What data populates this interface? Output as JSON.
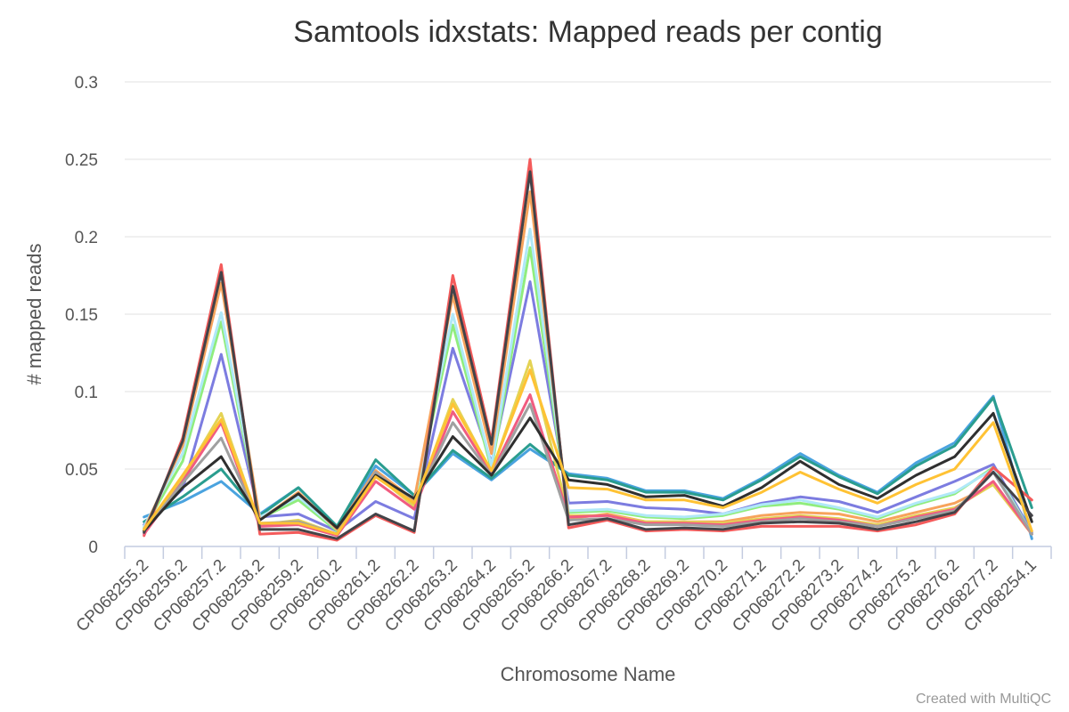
{
  "chart_data": {
    "type": "line",
    "title": "Samtools idxstats: Mapped reads per contig",
    "xlabel": "Chromosome Name",
    "ylabel": "# mapped reads",
    "ylim": [
      0,
      0.3
    ],
    "yticks": [
      "0",
      "0.05",
      "0.1",
      "0.15",
      "0.2",
      "0.25",
      "0.3"
    ],
    "grid": true,
    "legend": "none",
    "credit": "Created with MultiQC",
    "categories": [
      "CP068255.2",
      "CP068256.2",
      "CP068257.2",
      "CP068258.2",
      "CP068259.2",
      "CP068260.2",
      "CP068261.2",
      "CP068262.2",
      "CP068263.2",
      "CP068264.2",
      "CP068265.2",
      "CP068266.2",
      "CP068267.2",
      "CP068268.2",
      "CP068269.2",
      "CP068270.2",
      "CP068271.2",
      "CP068272.2",
      "CP068273.2",
      "CP068274.2",
      "CP068275.2",
      "CP068276.2",
      "CP068277.2",
      "CP068254.1"
    ],
    "series": [
      {
        "color": "#4aa3df",
        "values": [
          0.019,
          0.029,
          0.042,
          0.021,
          0.038,
          0.013,
          0.052,
          0.033,
          0.06,
          0.043,
          0.063,
          0.047,
          0.044,
          0.036,
          0.036,
          0.031,
          0.044,
          0.06,
          0.046,
          0.035,
          0.054,
          0.067,
          0.097,
          0.005
        ]
      },
      {
        "color": "#2a9d8f",
        "values": [
          0.016,
          0.032,
          0.05,
          0.02,
          0.038,
          0.013,
          0.056,
          0.033,
          0.062,
          0.044,
          0.066,
          0.046,
          0.043,
          0.035,
          0.035,
          0.03,
          0.043,
          0.058,
          0.045,
          0.034,
          0.052,
          0.065,
          0.096,
          0.025
        ]
      },
      {
        "color": "#7c7ce0",
        "values": [
          0.014,
          0.037,
          0.124,
          0.019,
          0.021,
          0.01,
          0.029,
          0.018,
          0.128,
          0.054,
          0.171,
          0.028,
          0.029,
          0.025,
          0.024,
          0.021,
          0.028,
          0.032,
          0.029,
          0.022,
          0.032,
          0.042,
          0.053,
          0.009
        ]
      },
      {
        "color": "#90ed7d",
        "values": [
          0.012,
          0.055,
          0.145,
          0.018,
          0.03,
          0.01,
          0.046,
          0.028,
          0.143,
          0.05,
          0.193,
          0.022,
          0.023,
          0.019,
          0.018,
          0.02,
          0.026,
          0.028,
          0.024,
          0.018,
          0.027,
          0.034,
          0.051,
          0.008
        ]
      },
      {
        "color": "#b0e8f8",
        "values": [
          0.013,
          0.06,
          0.151,
          0.019,
          0.032,
          0.011,
          0.048,
          0.029,
          0.15,
          0.052,
          0.205,
          0.023,
          0.024,
          0.02,
          0.019,
          0.021,
          0.027,
          0.03,
          0.025,
          0.019,
          0.028,
          0.035,
          0.05,
          0.008
        ]
      },
      {
        "color": "#f7a35c",
        "values": [
          0.011,
          0.065,
          0.17,
          0.017,
          0.035,
          0.011,
          0.049,
          0.03,
          0.162,
          0.06,
          0.229,
          0.018,
          0.021,
          0.016,
          0.016,
          0.016,
          0.02,
          0.022,
          0.021,
          0.016,
          0.022,
          0.028,
          0.04,
          0.008
        ]
      },
      {
        "color": "#e4d354",
        "values": [
          0.01,
          0.044,
          0.086,
          0.014,
          0.017,
          0.008,
          0.046,
          0.026,
          0.095,
          0.048,
          0.12,
          0.02,
          0.02,
          0.016,
          0.016,
          0.015,
          0.018,
          0.02,
          0.018,
          0.014,
          0.02,
          0.025,
          0.04,
          0.008
        ]
      },
      {
        "color": "#f45b5b",
        "values": [
          0.007,
          0.07,
          0.182,
          0.008,
          0.009,
          0.004,
          0.02,
          0.009,
          0.175,
          0.068,
          0.25,
          0.012,
          0.017,
          0.01,
          0.011,
          0.01,
          0.013,
          0.013,
          0.013,
          0.01,
          0.014,
          0.021,
          0.051,
          0.03
        ]
      },
      {
        "color": "#f15c80",
        "values": [
          0.008,
          0.042,
          0.08,
          0.013,
          0.014,
          0.007,
          0.042,
          0.024,
          0.087,
          0.047,
          0.098,
          0.019,
          0.02,
          0.015,
          0.015,
          0.014,
          0.017,
          0.019,
          0.017,
          0.013,
          0.019,
          0.024,
          0.042,
          0.008
        ]
      },
      {
        "color": "#a0a0a0",
        "values": [
          0.01,
          0.041,
          0.07,
          0.015,
          0.016,
          0.008,
          0.048,
          0.028,
          0.08,
          0.046,
          0.092,
          0.017,
          0.018,
          0.014,
          0.014,
          0.013,
          0.016,
          0.018,
          0.016,
          0.013,
          0.018,
          0.023,
          0.048,
          0.008
        ]
      },
      {
        "color": "#2f2f2f",
        "values": [
          0.01,
          0.038,
          0.058,
          0.017,
          0.034,
          0.012,
          0.046,
          0.031,
          0.071,
          0.046,
          0.083,
          0.043,
          0.04,
          0.032,
          0.033,
          0.026,
          0.038,
          0.055,
          0.04,
          0.031,
          0.046,
          0.058,
          0.086,
          0.016
        ]
      },
      {
        "color": "#434348",
        "values": [
          0.009,
          0.068,
          0.177,
          0.011,
          0.011,
          0.005,
          0.021,
          0.01,
          0.168,
          0.066,
          0.242,
          0.014,
          0.018,
          0.011,
          0.012,
          0.011,
          0.015,
          0.016,
          0.015,
          0.011,
          0.016,
          0.022,
          0.048,
          0.02
        ]
      },
      {
        "color": "#ffc234",
        "values": [
          0.011,
          0.046,
          0.082,
          0.015,
          0.015,
          0.008,
          0.045,
          0.028,
          0.092,
          0.049,
          0.114,
          0.038,
          0.037,
          0.03,
          0.03,
          0.025,
          0.035,
          0.048,
          0.037,
          0.028,
          0.04,
          0.05,
          0.08,
          0.01
        ]
      }
    ]
  }
}
